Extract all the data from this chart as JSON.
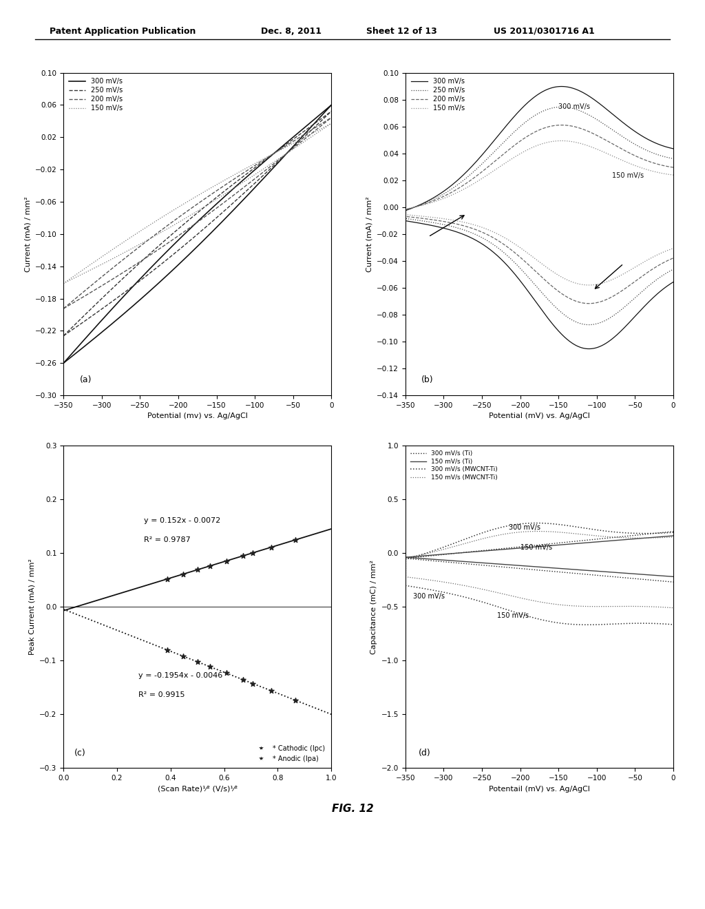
{
  "header_left": "Patent Application Publication",
  "header_mid": "Dec. 8, 2011",
  "header_right_sheet": "Sheet 12 of 13",
  "header_right_num": "US 2011/0301716 A1",
  "fig_label": "FIG. 12",
  "background_color": "#ffffff",
  "subplot_a": {
    "label": "(a)",
    "xlabel": "Potential (mv) vs. Ag/AgCl",
    "ylabel": "Current (mA) / mm²",
    "xlim": [
      -350,
      0
    ],
    "ylim": [
      -0.3,
      0.1
    ],
    "yticks": [
      0.1,
      0.06,
      0.02,
      -0.02,
      -0.06,
      -0.1,
      -0.14,
      -0.18,
      -0.22,
      -0.26,
      -0.3
    ],
    "xticks": [
      -350,
      -300,
      -250,
      -200,
      -150,
      -100,
      -50,
      0
    ],
    "legend": [
      "300 mV/s",
      "250 mV/s",
      "200 mV/s",
      "150 mV/s"
    ],
    "linestyles": [
      "-",
      "--",
      "--",
      ":"
    ],
    "linewidths": [
      1.2,
      1.0,
      1.0,
      0.9
    ],
    "linecolors": [
      "#111111",
      "#333333",
      "#555555",
      "#777777"
    ],
    "scales": [
      1.0,
      0.87,
      0.74,
      0.62
    ]
  },
  "subplot_b": {
    "label": "(b)",
    "xlabel": "Potential (mV) vs. Ag/AgCl",
    "ylabel": "Current (mA) / mm²",
    "xlim": [
      -350,
      0
    ],
    "ylim": [
      -0.14,
      0.1
    ],
    "yticks": [
      0.1,
      0.08,
      0.06,
      0.04,
      0.02,
      0,
      -0.02,
      -0.04,
      -0.06,
      -0.08,
      -0.1,
      -0.12,
      -0.14
    ],
    "xticks": [
      -350,
      -300,
      -250,
      -200,
      -150,
      -100,
      -50,
      0
    ],
    "legend": [
      "300 mV/s",
      "250 mV/s",
      "200 mV/s",
      "150 mV/s"
    ],
    "linestyles": [
      "-",
      ":",
      "--",
      ":"
    ],
    "linecolors": [
      "#111111",
      "#444444",
      "#666666",
      "#888888"
    ],
    "scales": [
      1.0,
      0.83,
      0.68,
      0.55
    ]
  },
  "subplot_c": {
    "label": "(c)",
    "xlabel": "(Scan Rate)¹⁄² (V/s)¹⁄²",
    "ylabel": "Peak Current (mA) / mm²",
    "xlim": [
      0,
      1.0
    ],
    "ylim": [
      -0.3,
      0.3
    ],
    "yticks": [
      0.3,
      0.2,
      0.1,
      0,
      -0.1,
      -0.2,
      -0.3
    ],
    "xticks": [
      0,
      0.2,
      0.4,
      0.6,
      0.8,
      1.0
    ],
    "eq_anodic": "y = 0.152x - 0.0072",
    "r2_anodic": "R² = 0.9787",
    "eq_cathodic": "y = -0.1954x - 0.0046",
    "r2_cathodic": "R² = 0.9915",
    "legend_cathodic": "* Cathodic (Ipc)",
    "legend_anodic": "* Anodic (Ipa)",
    "x_data": [
      0.387,
      0.447,
      0.5,
      0.548,
      0.608,
      0.671,
      0.707,
      0.775,
      0.866
    ]
  },
  "subplot_d": {
    "label": "(d)",
    "xlabel": "Potentail (mV) vs. Ag/AgCl",
    "ylabel": "Capacitance (mC) / mm²",
    "xlim": [
      -350,
      0
    ],
    "ylim": [
      -2,
      1
    ],
    "yticks": [
      1,
      0.5,
      0,
      -0.5,
      -1,
      -1.5,
      -2
    ],
    "xticks": [
      -350,
      -300,
      -250,
      -200,
      -150,
      -100,
      -50,
      0
    ],
    "legend": [
      "300 mV/s (Ti)",
      "150 mV/s (Ti)",
      "300 mV/s (MWCNT-Ti)",
      "150 mV/s (MWCNT-Ti)"
    ],
    "linestyles": [
      ":",
      "-",
      ":",
      ":"
    ],
    "linecolors": [
      "#222222",
      "#333333",
      "#555555",
      "#888888"
    ],
    "linewidths": [
      1.0,
      1.0,
      1.0,
      0.8
    ]
  }
}
